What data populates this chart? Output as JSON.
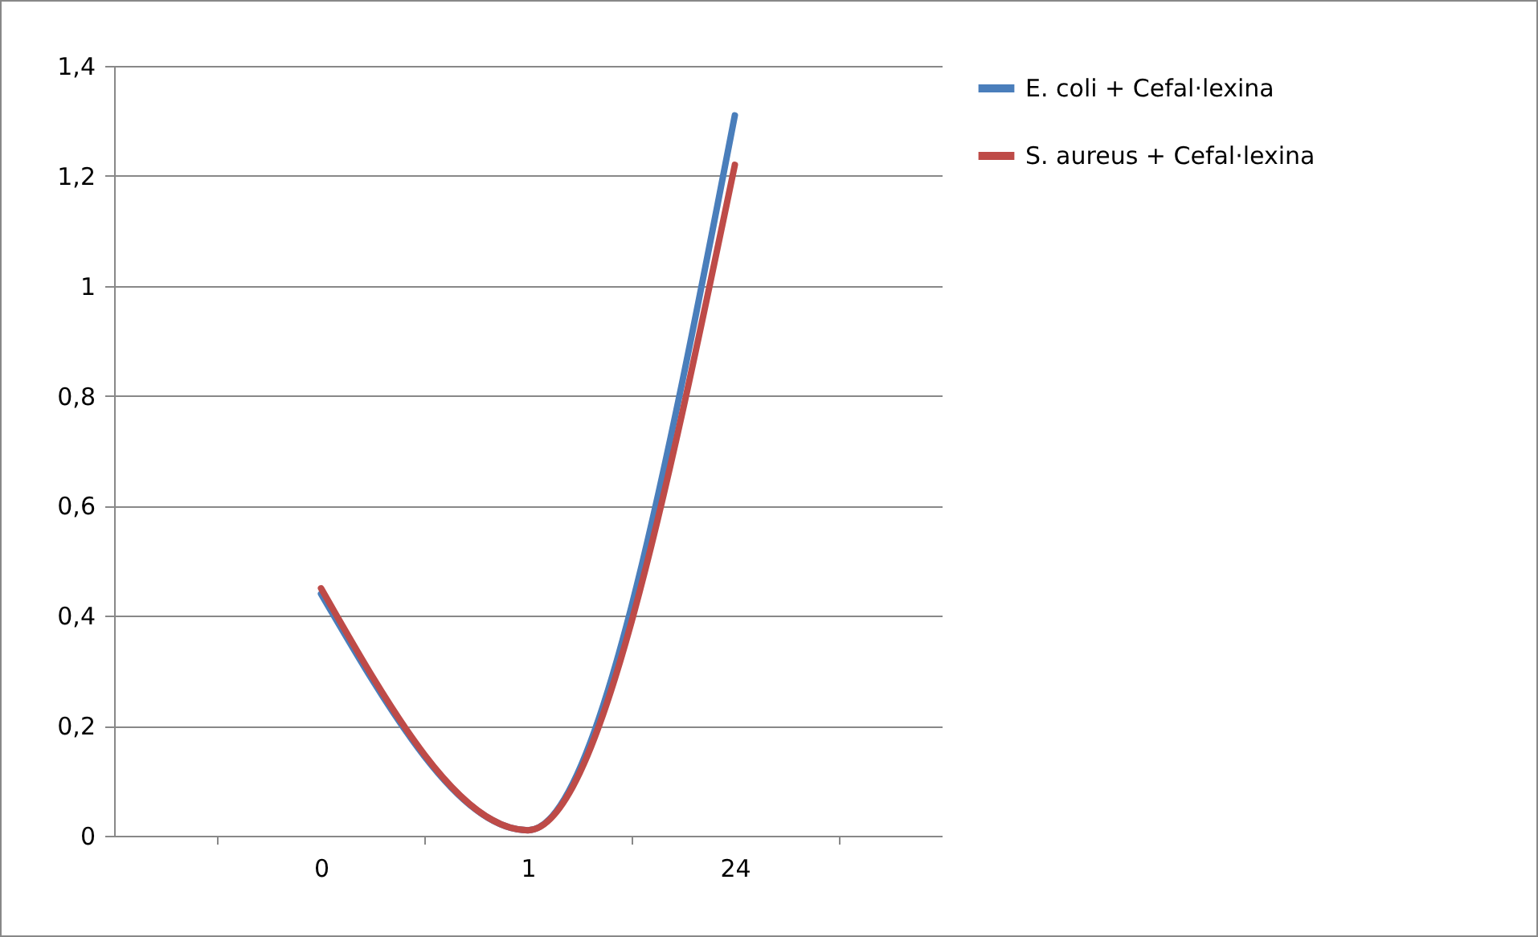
{
  "chart_data": {
    "type": "line",
    "categories": [
      "0",
      "1",
      "24"
    ],
    "series": [
      {
        "name": "E. coli + Cefal·lexina",
        "color": "#4a7ebb",
        "values": [
          0.44,
          0.01,
          1.31
        ]
      },
      {
        "name": "S. aureus + Cefal·lexina",
        "color": "#be4b48",
        "values": [
          0.45,
          0.01,
          1.22
        ]
      }
    ],
    "ylim": [
      0,
      1.4
    ],
    "yticks": [
      {
        "value": 0,
        "label": "0"
      },
      {
        "value": 0.2,
        "label": "0,2"
      },
      {
        "value": 0.4,
        "label": "0,4"
      },
      {
        "value": 0.6,
        "label": "0,6"
      },
      {
        "value": 0.8,
        "label": "0,8"
      },
      {
        "value": 1,
        "label": "1"
      },
      {
        "value": 1.2,
        "label": "1,2"
      },
      {
        "value": 1.4,
        "label": "1,4"
      }
    ],
    "grid": "y",
    "legend": "right",
    "marker": "none",
    "line_style": "solid"
  }
}
